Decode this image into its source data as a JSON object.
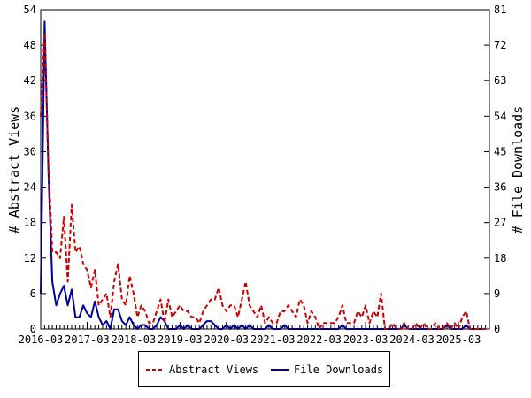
{
  "chart_data": {
    "type": "line",
    "title": "",
    "xlabel": "",
    "ylabel_left": "# Abstract Views",
    "ylabel_right": "# File Downloads",
    "x_start": "2016-03",
    "x_end": "2025-11",
    "x_tick_labels": [
      "2016-03",
      "2017-03",
      "2018-03",
      "2019-03",
      "2020-03",
      "2021-03",
      "2022-03",
      "2023-03",
      "2024-03",
      "2025-03"
    ],
    "ylim_left": [
      0,
      54
    ],
    "yticks_left": [
      "0",
      "6",
      "12",
      "18",
      "24",
      "30",
      "36",
      "42",
      "48",
      "54"
    ],
    "ylim_right": [
      0,
      81
    ],
    "yticks_right": [
      "0",
      "9",
      "18",
      "27",
      "36",
      "45",
      "54",
      "63",
      "72",
      "81"
    ],
    "grid": false,
    "legend_position": "bottom",
    "series": [
      {
        "name": "Abstract Views",
        "axis": "left",
        "color": "#cc0000",
        "style": "dashed",
        "values": [
          36,
          50,
          28,
          13,
          13,
          12,
          19,
          8,
          21,
          13,
          14,
          11,
          10,
          7,
          10,
          4,
          5,
          6,
          2,
          8,
          11,
          5,
          4,
          9,
          6,
          2,
          4,
          3,
          1,
          1,
          3,
          5,
          1,
          5,
          2,
          3,
          4,
          3,
          3,
          2,
          2,
          1,
          3,
          4,
          5,
          5,
          7,
          4,
          3,
          4,
          4,
          2,
          5,
          8,
          4,
          3,
          2,
          4,
          1,
          2,
          1,
          1,
          3,
          3,
          4,
          3,
          2,
          5,
          4,
          1,
          3,
          2,
          0,
          1,
          1,
          1,
          1,
          2,
          4,
          1,
          1,
          1,
          3,
          2,
          4,
          1,
          3,
          2,
          6,
          0,
          0,
          1,
          0,
          0,
          1,
          0,
          0,
          1,
          0,
          1,
          0,
          0,
          1,
          0,
          0,
          1,
          0,
          1,
          0,
          2,
          3,
          0,
          0,
          0,
          0,
          0
        ]
      },
      {
        "name": "File Downloads",
        "axis": "right",
        "color": "#000099",
        "style": "solid",
        "values": [
          9,
          78,
          40,
          12,
          6,
          9,
          11,
          6,
          10,
          3,
          3,
          6,
          4,
          3,
          7,
          3,
          1,
          2,
          0,
          5,
          5,
          2,
          1,
          3,
          1,
          0,
          1,
          1,
          0,
          0,
          1,
          3,
          2,
          0,
          0,
          0,
          1,
          0,
          1,
          0,
          0,
          0,
          1,
          2,
          2,
          1,
          0,
          0,
          1,
          0,
          1,
          0,
          1,
          0,
          1,
          0,
          0,
          0,
          0,
          1,
          0,
          0,
          0,
          1,
          0,
          0,
          0,
          0,
          0,
          0,
          0,
          0,
          0,
          0,
          0,
          0,
          0,
          0,
          1,
          0,
          0,
          0,
          0,
          0,
          0,
          0,
          0,
          0,
          0,
          0,
          0,
          0,
          0,
          0,
          1,
          0,
          0,
          0,
          0,
          0,
          0,
          0,
          0,
          0,
          0,
          1,
          0,
          0,
          0,
          0,
          1,
          0,
          0,
          0,
          0,
          0
        ]
      }
    ]
  }
}
